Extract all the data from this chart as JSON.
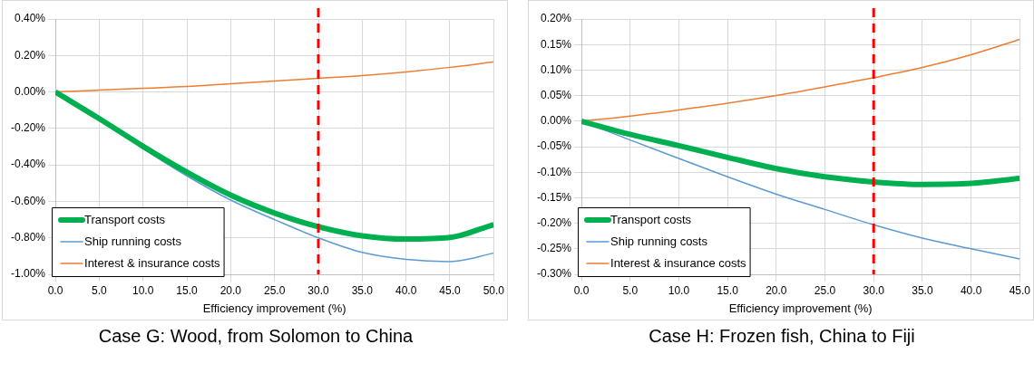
{
  "chart_data": [
    {
      "type": "line",
      "title": "Case G: Wood, from Solomon to China",
      "xlabel": "Efficiency improvement (%)",
      "x": [
        0,
        5,
        10,
        15,
        20,
        25,
        30,
        35,
        40,
        45,
        50
      ],
      "series": [
        {
          "name": "Transport costs",
          "color": "#00b050",
          "values": [
            0,
            -0.146,
            -0.298,
            -0.44,
            -0.566,
            -0.664,
            -0.739,
            -0.789,
            -0.807,
            -0.798,
            -0.727
          ]
        },
        {
          "name": "Ship running costs",
          "color": "#5b9bd5",
          "values": [
            0,
            -0.15,
            -0.31,
            -0.46,
            -0.593,
            -0.7,
            -0.8,
            -0.88,
            -0.918,
            -0.93,
            -0.884
          ]
        },
        {
          "name": "Interest & insurance costs",
          "color": "#ed7d31",
          "values": [
            0,
            0.01,
            0.02,
            0.03,
            0.045,
            0.06,
            0.075,
            0.09,
            0.11,
            0.135,
            0.165
          ]
        }
      ],
      "xlim": [
        0,
        50
      ],
      "xticks": [
        {
          "value": 0,
          "label": "0.0"
        },
        {
          "value": 5,
          "label": "5.0"
        },
        {
          "value": 10,
          "label": "10.0"
        },
        {
          "value": 15,
          "label": "15.0"
        },
        {
          "value": 20,
          "label": "20.0"
        },
        {
          "value": 25,
          "label": "25.0"
        },
        {
          "value": 30,
          "label": "30.0"
        },
        {
          "value": 35,
          "label": "35.0"
        },
        {
          "value": 40,
          "label": "40.0"
        },
        {
          "value": 45,
          "label": "45.0"
        },
        {
          "value": 50,
          "label": "50.0"
        }
      ],
      "ylim": [
        -1,
        0.4
      ],
      "yticks": [
        {
          "value": -1,
          "label": "-1.00%"
        },
        {
          "value": -0.8,
          "label": "-0.80%"
        },
        {
          "value": -0.6,
          "label": "-0.60%"
        },
        {
          "value": -0.4,
          "label": "-0.40%"
        },
        {
          "value": -0.2,
          "label": "-0.20%"
        },
        {
          "value": 0,
          "label": "0.00%"
        },
        {
          "value": 0.2,
          "label": "0.20%"
        },
        {
          "value": 0.4,
          "label": "0.40%"
        }
      ],
      "ref_lines": [
        {
          "axis": "x",
          "value": 30,
          "color": "#ff0000",
          "line_style": "dashed"
        }
      ],
      "grid": true,
      "legend": "bottom left",
      "marker": "none"
    },
    {
      "type": "line",
      "title": "Case H: Frozen fish, China to Fiji",
      "xlabel": "Efficiency improvement (%)",
      "x": [
        0,
        5,
        10,
        15,
        20,
        25,
        30,
        35,
        40,
        45
      ],
      "series": [
        {
          "name": "Transport costs",
          "color": "#00b050",
          "values": [
            0,
            -0.026,
            -0.048,
            -0.071,
            -0.093,
            -0.109,
            -0.119,
            -0.124,
            -0.122,
            -0.112
          ]
        },
        {
          "name": "Ship running costs",
          "color": "#5b9bd5",
          "values": [
            0,
            -0.037,
            -0.073,
            -0.109,
            -0.143,
            -0.173,
            -0.203,
            -0.229,
            -0.25,
            -0.27
          ]
        },
        {
          "name": "Interest & insurance costs",
          "color": "#ed7d31",
          "values": [
            0,
            0.01,
            0.022,
            0.035,
            0.05,
            0.067,
            0.085,
            0.105,
            0.13,
            0.16
          ]
        }
      ],
      "xlim": [
        0,
        45
      ],
      "xticks": [
        {
          "value": 0,
          "label": "0.0"
        },
        {
          "value": 5,
          "label": "5.0"
        },
        {
          "value": 10,
          "label": "10.0"
        },
        {
          "value": 15,
          "label": "15.0"
        },
        {
          "value": 20,
          "label": "20.0"
        },
        {
          "value": 25,
          "label": "25.0"
        },
        {
          "value": 30,
          "label": "30.0"
        },
        {
          "value": 35,
          "label": "35.0"
        },
        {
          "value": 40,
          "label": "40.0"
        },
        {
          "value": 45,
          "label": "45.0"
        }
      ],
      "ylim": [
        -0.3,
        0.2
      ],
      "yticks": [
        {
          "value": -0.3,
          "label": "-0.30%"
        },
        {
          "value": -0.25,
          "label": "-0.25%"
        },
        {
          "value": -0.2,
          "label": "-0.20%"
        },
        {
          "value": -0.15,
          "label": "-0.15%"
        },
        {
          "value": -0.1,
          "label": "-0.10%"
        },
        {
          "value": -0.05,
          "label": "-0.05%"
        },
        {
          "value": 0,
          "label": "0.00%"
        },
        {
          "value": 0.05,
          "label": "0.05%"
        },
        {
          "value": 0.1,
          "label": "0.10%"
        },
        {
          "value": 0.15,
          "label": "0.15%"
        },
        {
          "value": 0.2,
          "label": "0.20%"
        }
      ],
      "ref_lines": [
        {
          "axis": "x",
          "value": 30,
          "color": "#ff0000",
          "line_style": "dashed"
        }
      ],
      "grid": true,
      "legend": "bottom left",
      "marker": "none"
    }
  ]
}
